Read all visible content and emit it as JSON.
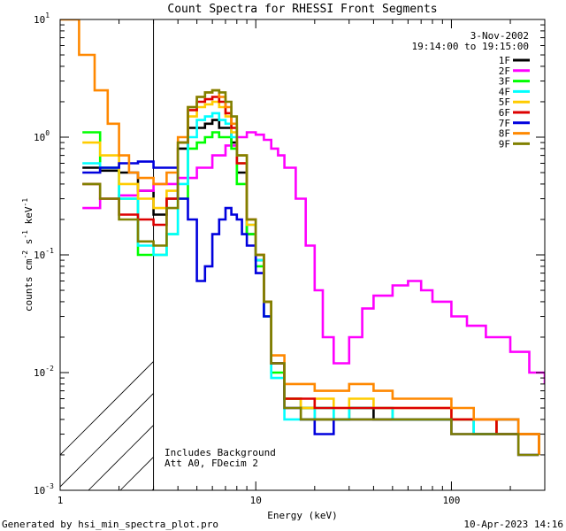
{
  "chart_data": {
    "type": "line",
    "title": "Count Spectra for RHESSI Front Segments",
    "xlabel": "Energy (keV)",
    "ylabel": "counts cm^-2 s^-1 keV^-1",
    "x_scale": "log",
    "y_scale": "log",
    "xlim": [
      1,
      300
    ],
    "ylim": [
      0.001,
      10
    ],
    "x_ticks": [
      {
        "value": 1,
        "label": "1"
      },
      {
        "value": 10,
        "label": "10"
      },
      {
        "value": 100,
        "label": "100"
      }
    ],
    "y_ticks": [
      {
        "value": 0.001,
        "base": "10",
        "exp": "-3"
      },
      {
        "value": 0.01,
        "base": "10",
        "exp": "-2"
      },
      {
        "value": 0.1,
        "base": "10",
        "exp": "-1"
      },
      {
        "value": 1,
        "base": "10",
        "exp": "0"
      },
      {
        "value": 10,
        "base": "10",
        "exp": "1"
      }
    ],
    "date": "3-Nov-2002",
    "time_range": "19:14:00 to 19:15:00",
    "annotation_lines": [
      "Includes Background",
      "Att A0, FDecim 2"
    ],
    "footer_left": "Generated by hsi_min_spectra_plot.pro",
    "footer_right": "10-Apr-2023 14:16",
    "hatched_region": {
      "x_from": 1,
      "x_to": 3
    },
    "series": [
      {
        "name": "1F",
        "color": "#000000",
        "x": [
          1.3,
          1.6,
          2.0,
          2.5,
          3.0,
          3.5,
          4.0,
          4.5,
          5.0,
          5.5,
          6.0,
          6.5,
          7.0,
          7.5,
          8.0,
          9.0,
          10.0,
          11.0,
          12.0,
          14.0,
          17.0,
          20.0,
          25.0,
          30.0,
          40.0,
          50.0,
          70.0,
          100.0,
          130.0,
          170.0,
          220.0,
          280.0
        ],
        "y": [
          0.55,
          0.52,
          0.5,
          0.35,
          0.22,
          0.3,
          0.8,
          1.2,
          1.2,
          1.3,
          1.4,
          1.2,
          1.2,
          0.9,
          0.5,
          0.15,
          0.09,
          0.04,
          0.012,
          0.006,
          0.005,
          0.004,
          0.004,
          0.005,
          0.004,
          0.004,
          0.004,
          0.004,
          0.003,
          0.004,
          0.003,
          0.002
        ]
      },
      {
        "name": "2F",
        "color": "#ff00ff",
        "x": [
          1.3,
          1.6,
          2.0,
          2.5,
          3.0,
          3.5,
          4.0,
          5.0,
          6.0,
          7.0,
          8.0,
          9.0,
          10.0,
          11.0,
          12.0,
          13.0,
          14.0,
          16.0,
          18.0,
          20.0,
          22.0,
          25.0,
          30.0,
          35.0,
          40.0,
          50.0,
          60.0,
          70.0,
          80.0,
          100.0,
          120.0,
          150.0,
          200.0,
          250.0,
          300.0
        ],
        "y": [
          0.25,
          0.3,
          0.32,
          0.35,
          0.4,
          0.4,
          0.45,
          0.55,
          0.7,
          0.85,
          1.0,
          1.1,
          1.05,
          0.95,
          0.8,
          0.7,
          0.55,
          0.3,
          0.12,
          0.05,
          0.02,
          0.012,
          0.02,
          0.035,
          0.045,
          0.055,
          0.06,
          0.05,
          0.04,
          0.03,
          0.025,
          0.02,
          0.015,
          0.01,
          0.008
        ]
      },
      {
        "name": "3F",
        "color": "#00ff00",
        "x": [
          1.3,
          1.6,
          2.0,
          2.5,
          3.0,
          3.5,
          4.0,
          4.5,
          5.0,
          5.5,
          6.0,
          6.5,
          7.0,
          7.5,
          8.0,
          9.0,
          10.0,
          11.0,
          12.0,
          14.0,
          17.0,
          20.0,
          25.0,
          30.0,
          40.0,
          50.0,
          70.0,
          100.0,
          130.0,
          170.0,
          220.0,
          280.0
        ],
        "y": [
          1.1,
          0.55,
          0.3,
          0.1,
          0.1,
          0.15,
          0.3,
          0.8,
          0.9,
          1.0,
          1.1,
          1.0,
          1.0,
          0.8,
          0.4,
          0.15,
          0.08,
          0.03,
          0.01,
          0.006,
          0.005,
          0.005,
          0.004,
          0.005,
          0.005,
          0.004,
          0.004,
          0.004,
          0.003,
          0.003,
          0.003,
          0.002
        ]
      },
      {
        "name": "4F",
        "color": "#00ffff",
        "x": [
          1.3,
          1.6,
          2.0,
          2.5,
          3.0,
          3.5,
          4.0,
          4.5,
          5.0,
          5.5,
          6.0,
          6.5,
          7.0,
          7.5,
          8.0,
          9.0,
          10.0,
          11.0,
          12.0,
          14.0,
          17.0,
          20.0,
          25.0,
          30.0,
          40.0,
          50.0,
          70.0,
          100.0,
          130.0,
          170.0,
          220.0,
          280.0
        ],
        "y": [
          0.6,
          0.55,
          0.3,
          0.12,
          0.1,
          0.15,
          0.4,
          1.0,
          1.4,
          1.5,
          1.6,
          1.4,
          1.3,
          1.0,
          0.6,
          0.18,
          0.09,
          0.03,
          0.009,
          0.004,
          0.004,
          0.005,
          0.004,
          0.005,
          0.005,
          0.004,
          0.004,
          0.004,
          0.003,
          0.003,
          0.003,
          0.002
        ]
      },
      {
        "name": "5F",
        "color": "#ffcc00",
        "x": [
          1.3,
          1.6,
          2.0,
          2.5,
          3.0,
          3.5,
          4.0,
          4.5,
          5.0,
          5.5,
          6.0,
          6.5,
          7.0,
          7.5,
          8.0,
          9.0,
          10.0,
          11.0,
          12.0,
          14.0,
          17.0,
          20.0,
          25.0,
          30.0,
          40.0,
          50.0,
          70.0,
          100.0,
          130.0,
          170.0,
          220.0,
          280.0
        ],
        "y": [
          0.9,
          0.7,
          0.4,
          0.3,
          0.25,
          0.35,
          0.9,
          1.5,
          1.8,
          1.9,
          2.0,
          1.8,
          1.5,
          1.1,
          0.6,
          0.18,
          0.1,
          0.04,
          0.012,
          0.006,
          0.005,
          0.006,
          0.005,
          0.006,
          0.005,
          0.005,
          0.005,
          0.004,
          0.004,
          0.003,
          0.003,
          0.002
        ]
      },
      {
        "name": "6F",
        "color": "#dd0000",
        "x": [
          1.3,
          1.6,
          2.0,
          2.5,
          3.0,
          3.5,
          4.0,
          4.5,
          5.0,
          5.5,
          6.0,
          6.5,
          7.0,
          7.5,
          8.0,
          9.0,
          10.0,
          11.0,
          12.0,
          14.0,
          17.0,
          20.0,
          25.0,
          30.0,
          40.0,
          50.0,
          70.0,
          100.0,
          130.0,
          170.0,
          220.0,
          280.0
        ],
        "y": [
          0.4,
          0.3,
          0.22,
          0.2,
          0.18,
          0.3,
          0.9,
          1.7,
          2.0,
          2.1,
          2.2,
          2.0,
          1.6,
          1.2,
          0.6,
          0.2,
          0.1,
          0.04,
          0.012,
          0.006,
          0.006,
          0.005,
          0.005,
          0.005,
          0.005,
          0.005,
          0.005,
          0.004,
          0.004,
          0.003,
          0.003,
          0.002
        ]
      },
      {
        "name": "7F",
        "color": "#0000dd",
        "x": [
          1.3,
          1.6,
          2.0,
          2.5,
          3.0,
          3.5,
          4.0,
          4.5,
          5.0,
          5.5,
          6.0,
          6.5,
          7.0,
          7.5,
          8.0,
          8.5,
          9.0,
          10.0,
          11.0,
          12.0,
          14.0,
          17.0,
          20.0,
          25.0,
          30.0,
          40.0,
          50.0,
          70.0,
          100.0,
          130.0,
          170.0,
          220.0,
          280.0
        ],
        "y": [
          0.5,
          0.55,
          0.6,
          0.62,
          0.55,
          0.55,
          0.3,
          0.2,
          0.06,
          0.08,
          0.15,
          0.2,
          0.25,
          0.22,
          0.2,
          0.15,
          0.12,
          0.07,
          0.03,
          0.012,
          0.005,
          0.004,
          0.003,
          0.004,
          0.004,
          0.004,
          0.004,
          0.004,
          0.003,
          0.003,
          0.003,
          0.002,
          0.002
        ]
      },
      {
        "name": "8F",
        "color": "#ff8800",
        "x": [
          1.0,
          1.25,
          1.5,
          1.75,
          2.0,
          2.25,
          2.5,
          3.0,
          3.5,
          4.0,
          4.5,
          5.0,
          5.5,
          6.0,
          6.5,
          7.0,
          7.5,
          8.0,
          9.0,
          10.0,
          11.0,
          12.0,
          14.0,
          17.0,
          20.0,
          25.0,
          30.0,
          40.0,
          50.0,
          70.0,
          100.0,
          130.0,
          170.0,
          220.0,
          280.0
        ],
        "y": [
          10.0,
          5.0,
          2.5,
          1.3,
          0.7,
          0.5,
          0.45,
          0.4,
          0.5,
          1.0,
          1.8,
          2.2,
          2.4,
          2.5,
          2.2,
          1.8,
          1.3,
          0.7,
          0.2,
          0.1,
          0.04,
          0.014,
          0.008,
          0.008,
          0.007,
          0.007,
          0.008,
          0.007,
          0.006,
          0.006,
          0.005,
          0.004,
          0.004,
          0.003,
          0.002
        ]
      },
      {
        "name": "9F",
        "color": "#808000",
        "x": [
          1.3,
          1.6,
          2.0,
          2.5,
          3.0,
          3.5,
          4.0,
          4.5,
          5.0,
          5.5,
          6.0,
          6.5,
          7.0,
          7.5,
          8.0,
          9.0,
          10.0,
          11.0,
          12.0,
          14.0,
          17.0,
          20.0,
          25.0,
          30.0,
          40.0,
          50.0,
          70.0,
          100.0,
          130.0,
          170.0,
          220.0,
          280.0
        ],
        "y": [
          0.4,
          0.3,
          0.2,
          0.13,
          0.12,
          0.25,
          0.9,
          1.8,
          2.2,
          2.4,
          2.5,
          2.4,
          2.0,
          1.5,
          0.7,
          0.2,
          0.1,
          0.04,
          0.012,
          0.005,
          0.004,
          0.004,
          0.004,
          0.004,
          0.004,
          0.004,
          0.004,
          0.003,
          0.003,
          0.003,
          0.002,
          0.002
        ]
      }
    ]
  }
}
